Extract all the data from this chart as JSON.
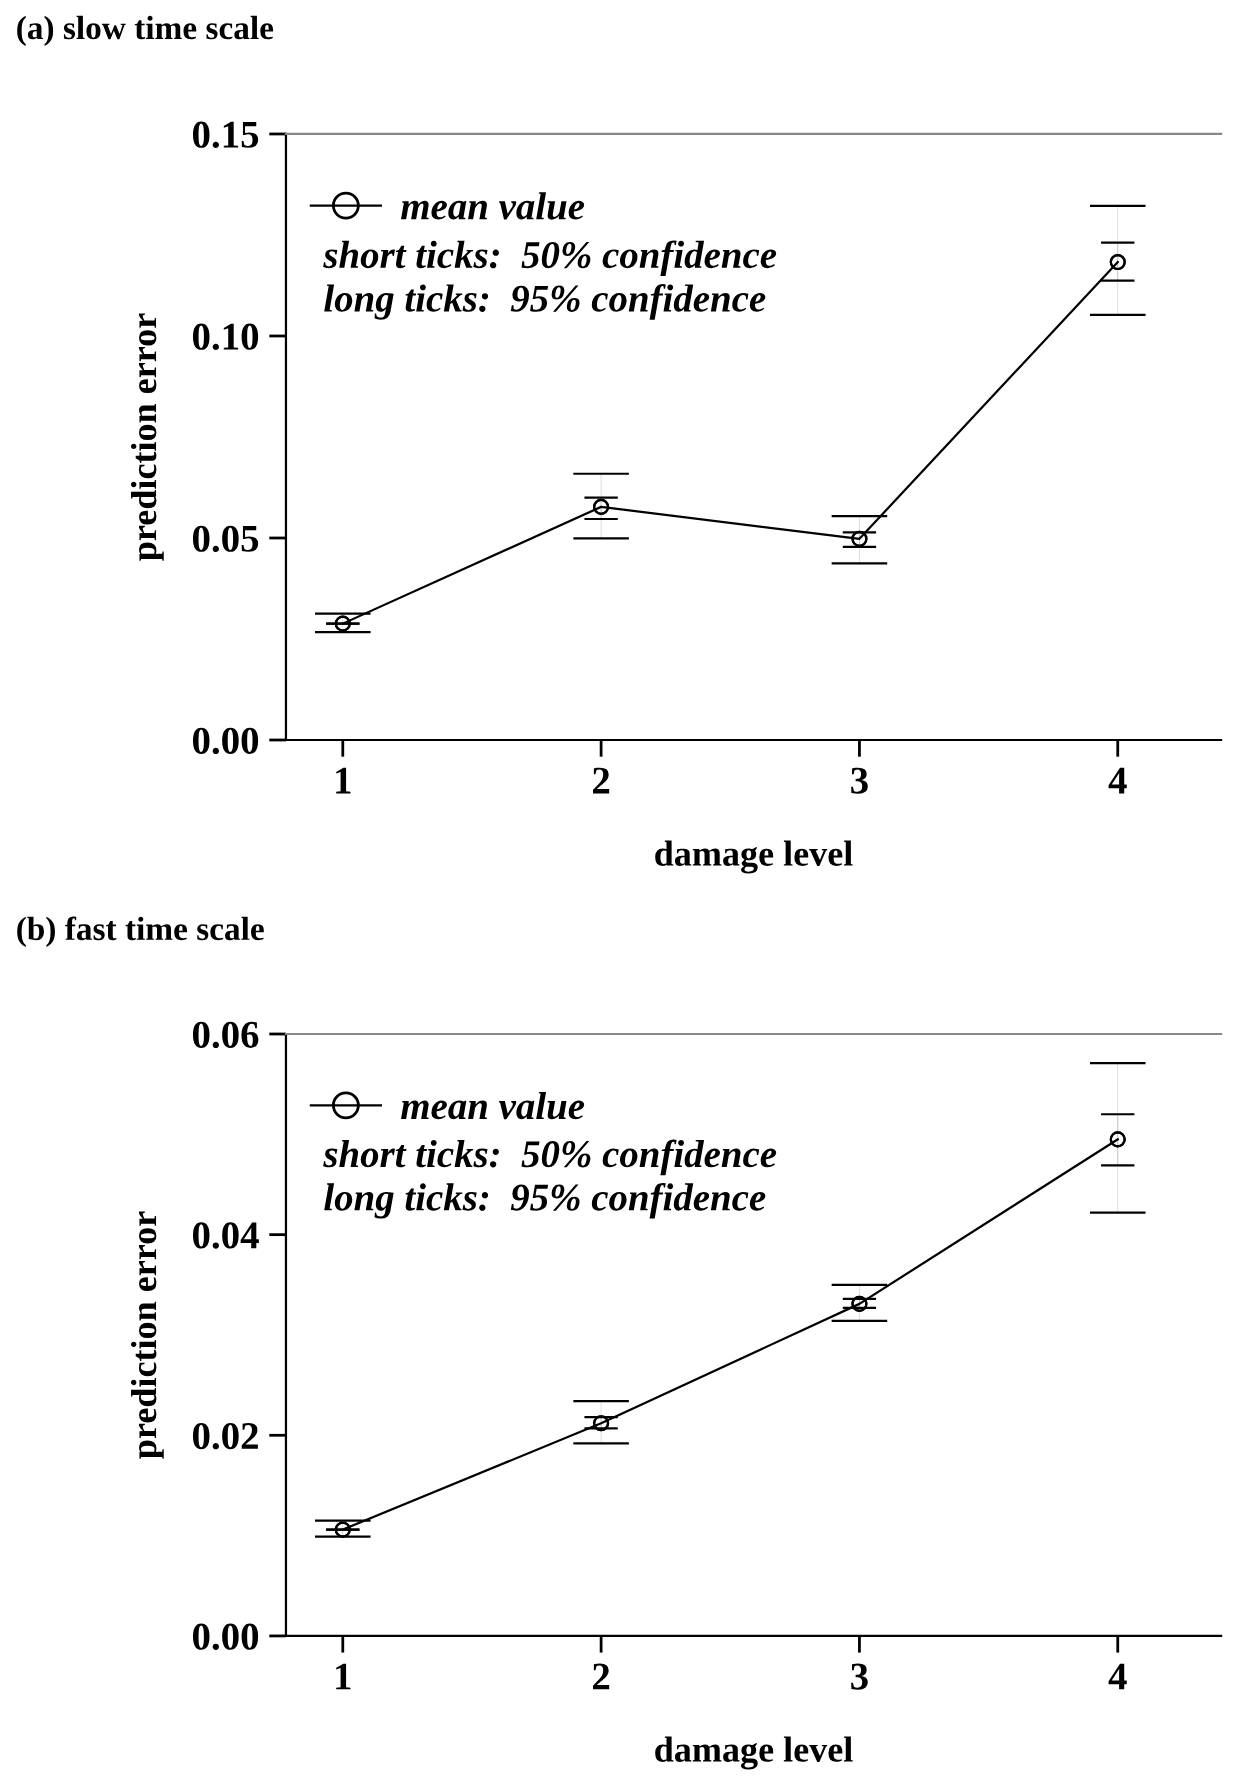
{
  "chart_data": [
    {
      "type": "line",
      "title": "(a) slow time scale",
      "xlabel": "damage level",
      "ylabel": "prediction error",
      "x": [
        1,
        2,
        3,
        4
      ],
      "xlim": [
        0.78,
        4.4
      ],
      "xticks": [
        1,
        2,
        3,
        4
      ],
      "ylim": [
        0,
        0.15
      ],
      "yticks": [
        {
          "value": 0,
          "label": "0.00"
        },
        {
          "value": 0.05,
          "label": "0.05"
        },
        {
          "value": 0.1,
          "label": "0.10"
        },
        {
          "value": 0.15,
          "label": "0.15"
        }
      ],
      "grid": false,
      "legend": "top left",
      "marker": "circle",
      "line_style": "solid",
      "series": [
        {
          "name": "mean value",
          "color": "#000000",
          "values": [
            0.0288,
            0.0577,
            0.0498,
            0.1183
          ],
          "errors": [
            null,
            [
              0.0547,
              0.06
            ],
            [
              0.0478,
              0.0514
            ],
            [
              0.1137,
              0.1231
            ]
          ]
        },
        {
          "type": "scatter",
          "color": "#000000",
          "values": [
            0.0288,
            0.0577,
            0.0498,
            0.1183
          ],
          "errors": [
            [
              0.0267,
              0.0313
            ],
            [
              0.0499,
              0.0659
            ],
            [
              0.0437,
              0.0554
            ],
            [
              0.1052,
              0.1322
            ]
          ]
        }
      ],
      "annotations": [
        "short ticks:  50% confidence",
        "long ticks:  95% confidence"
      ]
    },
    {
      "type": "line",
      "title": "(b) fast time scale",
      "xlabel": "damage level",
      "ylabel": "prediction error",
      "x": [
        1,
        2,
        3,
        4
      ],
      "xlim": [
        0.78,
        4.4
      ],
      "xticks": [
        1,
        2,
        3,
        4
      ],
      "ylim": [
        0,
        0.06
      ],
      "yticks": [
        {
          "value": 0,
          "label": "0.00"
        },
        {
          "value": 0.02,
          "label": "0.02"
        },
        {
          "value": 0.04,
          "label": "0.04"
        },
        {
          "value": 0.06,
          "label": "0.06"
        }
      ],
      "grid": false,
      "legend": "top left",
      "marker": "circle",
      "line_style": "solid",
      "series": [
        {
          "name": "mean value",
          "color": "#000000",
          "values": [
            0.0106,
            0.0212,
            0.0331,
            0.0495
          ],
          "errors": [
            null,
            [
              0.0207,
              0.0218
            ],
            [
              0.0327,
              0.0336
            ],
            [
              0.0469,
              0.052
            ]
          ]
        },
        {
          "type": "scatter",
          "color": "#000000",
          "values": [
            0.0106,
            0.0212,
            0.0331,
            0.0495
          ],
          "errors": [
            [
              0.0099,
              0.0115
            ],
            [
              0.0192,
              0.0234
            ],
            [
              0.0314,
              0.035
            ],
            [
              0.0422,
              0.0571
            ]
          ]
        }
      ],
      "annotations": [
        "short ticks:  50% confidence",
        "long ticks:  95% confidence"
      ]
    }
  ]
}
